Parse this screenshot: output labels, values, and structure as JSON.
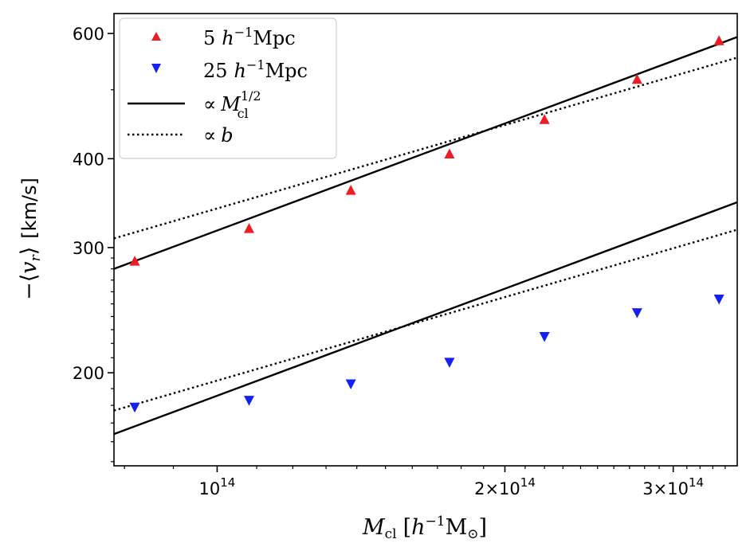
{
  "chart_data": {
    "type": "scatter",
    "xscale": "log",
    "yscale": "log",
    "xlim": [
      78000000000000.0,
      350000000000000.0
    ],
    "ylim": [
      148,
      640
    ],
    "xlabel": "M_cl [h^-1 M_sun]",
    "ylabel": "−⟨v_r⟩ [km/s]",
    "xticks": [
      {
        "value": 100000000000000.0,
        "base": "10",
        "exp": "14"
      },
      {
        "value": 200000000000000.0,
        "base": "2×10",
        "exp": "14"
      },
      {
        "value": 300000000000000.0,
        "base": "3×10",
        "exp": "14"
      }
    ],
    "yticks": [
      {
        "value": 200,
        "label": "200"
      },
      {
        "value": 300,
        "label": "300"
      },
      {
        "value": 400,
        "label": "400"
      },
      {
        "value": 600,
        "label": "600"
      }
    ],
    "series": [
      {
        "name": "5 h^-1 Mpc",
        "marker": "triangle-up",
        "color": "#ee1c25",
        "x": [
          82000000000000.0,
          108000000000000.0,
          138000000000000.0,
          175000000000000.0,
          220000000000000.0,
          275000000000000.0,
          335000000000000.0
        ],
        "y": [
          287,
          319,
          361,
          406,
          454,
          517,
          586
        ]
      },
      {
        "name": "25 h^-1 Mpc",
        "marker": "triangle-down",
        "color": "#1520f2",
        "x": [
          82000000000000.0,
          108000000000000.0,
          138000000000000.0,
          175000000000000.0,
          220000000000000.0,
          275000000000000.0,
          335000000000000.0
        ],
        "y": [
          179,
          183,
          193,
          207,
          225,
          243,
          254
        ]
      }
    ],
    "fits": [
      {
        "name": "∝ M_cl^1/2",
        "style": "solid",
        "color": "#000000",
        "kind": "power",
        "exponent": 0.5,
        "segments": [
          {
            "x0": 78000000000000.0,
            "y0": 280
          },
          {
            "x0": 78000000000000.0,
            "y0": 164
          }
        ]
      },
      {
        "name": "∝ b",
        "style": "dotted",
        "color": "#000000",
        "kind": "power",
        "exponent": 0.39,
        "segments": [
          {
            "x0": 78000000000000.0,
            "y0": 309
          },
          {
            "x0": 78000000000000.0,
            "y0": 177
          }
        ]
      }
    ],
    "legend": {
      "position": "top-left",
      "entries": [
        {
          "label_num": "5",
          "h": "h",
          "exp": "−1",
          "unit": "Mpc",
          "marker": "triangle-up"
        },
        {
          "label_num": "25",
          "h": "h",
          "exp": "−1",
          "unit": "Mpc",
          "marker": "triangle-down"
        },
        {
          "prop": "∝",
          "sym": "M",
          "sub": "cl",
          "sup": "1/2",
          "line": "solid"
        },
        {
          "prop": "∝",
          "sym": "b",
          "line": "dotted"
        }
      ]
    },
    "xlabel_parts": {
      "M": "M",
      "sub": "cl",
      "open": "[",
      "h": "h",
      "exp": "−1",
      "msun": "M",
      "sun_sub": "⊙",
      "close": "]"
    },
    "ylabel_parts": {
      "prefix": "−⟨",
      "v": "v",
      "sub": "r",
      "suffix": "⟩",
      "unit": "[km/s]"
    }
  }
}
